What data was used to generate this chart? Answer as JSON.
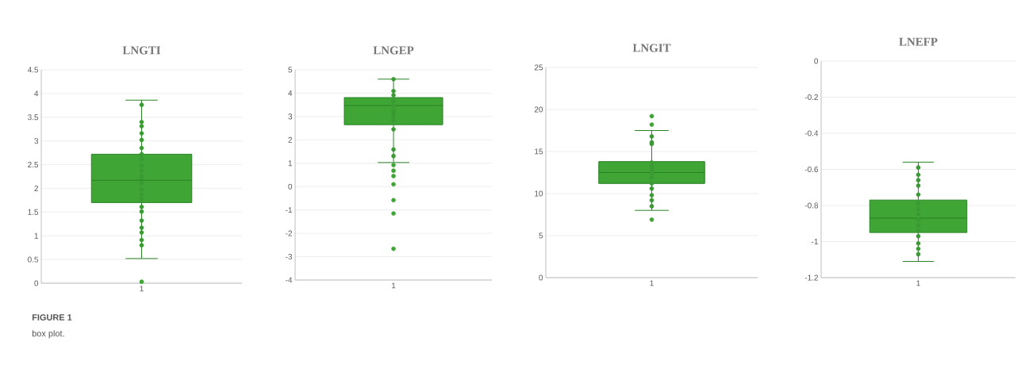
{
  "chart_data": [
    {
      "type": "box",
      "title": "LNGTI",
      "categories": [
        "1"
      ],
      "ylim": [
        0,
        4.5
      ],
      "yticks": [
        0,
        0.5,
        1,
        1.5,
        2,
        2.5,
        3,
        3.5,
        4,
        4.5
      ],
      "grid": "y",
      "color": "#3fa535",
      "boxes": [
        {
          "low": 0.52,
          "q1": 1.7,
          "median": 2.17,
          "q3": 2.72,
          "high": 3.86,
          "mean": 2.2,
          "outliers": [
            0.03
          ]
        }
      ],
      "series": [
        {
          "type": "scatter",
          "color": "#3a9a33",
          "x": [
            "1",
            "1",
            "1",
            "1",
            "1",
            "1",
            "1",
            "1",
            "1",
            "1",
            "1",
            "1",
            "1",
            "1",
            "1",
            "1",
            "1",
            "1",
            "1",
            "1",
            "1",
            "1"
          ],
          "values": [
            3.76,
            3.4,
            3.31,
            3.16,
            3.02,
            2.85,
            2.72,
            2.62,
            2.48,
            2.37,
            2.26,
            2.11,
            1.98,
            1.87,
            1.77,
            1.61,
            1.51,
            1.32,
            1.17,
            1.07,
            0.91,
            0.8
          ]
        }
      ],
      "annotations": [
        "FIGURE 1",
        "box plot."
      ]
    },
    {
      "type": "box",
      "title": "LNGEP",
      "categories": [
        "1"
      ],
      "ylim": [
        -4,
        5
      ],
      "yticks": [
        -4,
        -3,
        -2,
        -1,
        0,
        1,
        2,
        3,
        4,
        5
      ],
      "grid": "y",
      "color": "#3fa535",
      "boxes": [
        {
          "low": 1.03,
          "q1": 2.65,
          "median": 3.47,
          "q3": 3.81,
          "high": 4.6,
          "mean": 3.09,
          "outliers": [
            0.92,
            0.68,
            0.45,
            0.1,
            -0.58,
            -1.15,
            -2.66
          ]
        }
      ],
      "series": [
        {
          "type": "scatter",
          "color": "#3a9a33",
          "x": [
            "1",
            "1",
            "1",
            "1",
            "1",
            "1",
            "1",
            "1",
            "1",
            "1",
            "1"
          ],
          "values": [
            4.6,
            4.09,
            3.91,
            3.66,
            3.46,
            3.24,
            3.02,
            2.81,
            2.45,
            1.59,
            1.31
          ]
        }
      ]
    },
    {
      "type": "box",
      "title": "LNGIT",
      "categories": [
        "1"
      ],
      "ylim": [
        0,
        25
      ],
      "yticks": [
        0,
        5,
        10,
        15,
        20,
        25
      ],
      "grid": "y",
      "color": "#3fa535",
      "boxes": [
        {
          "low": 8.0,
          "q1": 11.2,
          "median": 12.5,
          "q3": 13.8,
          "high": 17.5,
          "mean": 13.0,
          "outliers": [
            19.2,
            18.2,
            6.9
          ]
        }
      ],
      "series": [
        {
          "type": "scatter",
          "color": "#3a9a33",
          "x": [
            "1",
            "1",
            "1",
            "1",
            "1",
            "1",
            "1",
            "1",
            "1",
            "1",
            "1",
            "1",
            "1"
          ],
          "values": [
            16.8,
            16.1,
            15.9,
            13.7,
            13.3,
            12.8,
            12.4,
            11.9,
            11.2,
            10.6,
            9.8,
            9.2,
            8.5
          ]
        }
      ]
    },
    {
      "type": "box",
      "title": "LNEFP",
      "categories": [
        "1"
      ],
      "ylim": [
        -1.2,
        0
      ],
      "yticks": [
        -1.2,
        -1,
        -0.8,
        -0.6,
        -0.4,
        -0.2,
        0
      ],
      "grid": "y",
      "color": "#3fa535",
      "boxes": [
        {
          "low": -1.11,
          "q1": -0.95,
          "median": -0.87,
          "q3": -0.77,
          "high": -0.56,
          "mean": -0.85
        }
      ],
      "series": [
        {
          "type": "scatter",
          "color": "#3a9a33",
          "x": [
            "1",
            "1",
            "1",
            "1",
            "1",
            "1",
            "1",
            "1",
            "1",
            "1",
            "1",
            "1",
            "1",
            "1"
          ],
          "values": [
            -0.59,
            -0.63,
            -0.66,
            -0.69,
            -0.74,
            -0.79,
            -0.82,
            -0.88,
            -0.91,
            -0.94,
            -0.97,
            -1.01,
            -1.04,
            -1.07
          ]
        }
      ]
    }
  ]
}
